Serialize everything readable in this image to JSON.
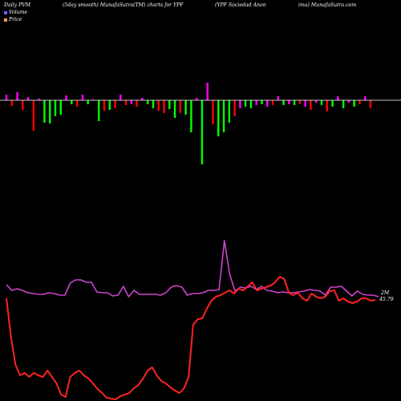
{
  "header": {
    "left": "Daily PVM",
    "mid1": "(5day smooth) MunafaSutra(TM) charts for YPF",
    "mid2": "(YPF Sociedad Anon",
    "right": "ima) MunafaSutra.com"
  },
  "legend": {
    "volume_label": "Volume",
    "price_label": "Price",
    "volume_color": "#6666ff",
    "price_color": "#ff9966"
  },
  "colors": {
    "up": "#00ff00",
    "down": "#ff0000",
    "neutral": "#ff00ff",
    "pvm_line": "#cc44cc",
    "price_line": "#ff2222",
    "axis": "#ffffff"
  },
  "chart_data": {
    "type": "bar+line",
    "volume_bars": {
      "values": [
        7,
        -7,
        10,
        -12,
        4,
        -38,
        2,
        -28,
        -29,
        -20,
        -18,
        6,
        -5,
        -8,
        7,
        -5,
        1,
        -26,
        -13,
        -12,
        -10,
        7,
        -6,
        -5,
        -8,
        3,
        -5,
        -10,
        -13,
        -16,
        -11,
        -22,
        -16,
        -18,
        -40,
        3,
        -80,
        22,
        -30,
        -45,
        -40,
        -28,
        -20,
        -10,
        -8,
        -10,
        -6,
        -5,
        -8,
        -6,
        5,
        -6,
        -5,
        -6,
        -5,
        -8,
        -12,
        -3,
        -6,
        -14,
        -8,
        5,
        -10,
        -3,
        -8,
        -5,
        5,
        -10
      ],
      "signs": [
        "m",
        "r",
        "m",
        "r",
        "m",
        "r",
        "m",
        "g",
        "g",
        "g",
        "g",
        "m",
        "g",
        "r",
        "m",
        "g",
        "m",
        "g",
        "r",
        "g",
        "r",
        "m",
        "r",
        "m",
        "r",
        "m",
        "g",
        "g",
        "r",
        "r",
        "g",
        "g",
        "r",
        "g",
        "g",
        "m",
        "g",
        "m",
        "r",
        "g",
        "g",
        "g",
        "r",
        "m",
        "g",
        "g",
        "m",
        "g",
        "m",
        "r",
        "m",
        "g",
        "m",
        "g",
        "r",
        "m",
        "r",
        "m",
        "g",
        "r",
        "g",
        "m",
        "g",
        "m",
        "g",
        "r",
        "m",
        "r"
      ]
    },
    "pvm_line": [
      355,
      362,
      360,
      362,
      365,
      366,
      367,
      367,
      365,
      366,
      368,
      368,
      353,
      349,
      349,
      352,
      352,
      364,
      365,
      365,
      369,
      368,
      357,
      370,
      362,
      367,
      367,
      367,
      367,
      368,
      365,
      358,
      356,
      358,
      368,
      366,
      366,
      365,
      362,
      362,
      361,
      300,
      342,
      363,
      358,
      359,
      357,
      361,
      357,
      362,
      363,
      365,
      364,
      365,
      365,
      364,
      363,
      361,
      362,
      363,
      368,
      358,
      358,
      357,
      363,
      369,
      363,
      367,
      368,
      368,
      370
    ],
    "price_line": [
      372,
      420,
      455,
      468,
      465,
      470,
      465,
      468,
      470,
      462,
      470,
      478,
      492,
      495,
      470,
      465,
      462,
      468,
      472,
      478,
      485,
      490,
      496,
      497,
      498,
      494,
      492,
      490,
      484,
      480,
      472,
      462,
      458,
      468,
      475,
      478,
      483,
      487,
      490,
      484,
      470,
      405,
      398,
      397,
      385,
      375,
      370,
      368,
      365,
      362,
      366,
      360,
      362,
      357,
      352,
      362,
      360,
      358,
      356,
      352,
      345,
      348,
      365,
      368,
      365,
      372,
      375,
      366,
      370,
      372,
      370,
      363,
      362,
      375,
      372,
      376,
      378,
      376,
      372,
      372,
      375,
      374
    ],
    "end_labels": {
      "line1": "2M",
      "line2": "45.79"
    }
  }
}
